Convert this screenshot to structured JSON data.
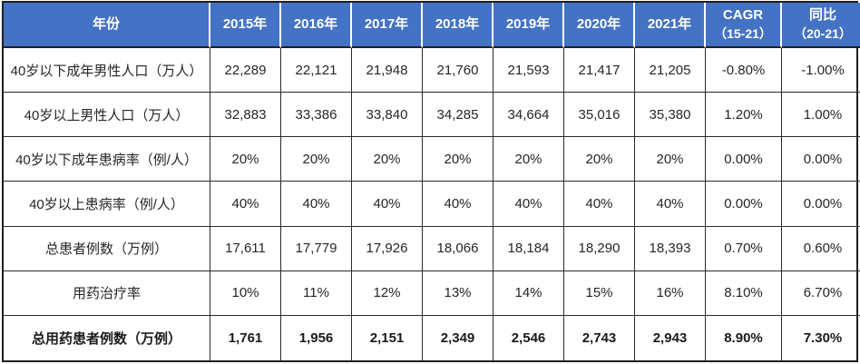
{
  "chart_data": {
    "type": "table",
    "title": "",
    "columns": [
      {
        "label": "年份",
        "sub": ""
      },
      {
        "label": "2015年",
        "sub": ""
      },
      {
        "label": "2016年",
        "sub": ""
      },
      {
        "label": "2017年",
        "sub": ""
      },
      {
        "label": "2018年",
        "sub": ""
      },
      {
        "label": "2019年",
        "sub": ""
      },
      {
        "label": "2020年",
        "sub": ""
      },
      {
        "label": "2021年",
        "sub": ""
      },
      {
        "label": "CAGR",
        "sub": "（15-21）"
      },
      {
        "label": "同比",
        "sub": "（20-21）"
      }
    ],
    "rows": [
      {
        "label": "40岁以下成年男性人口（万人）",
        "bold": false,
        "values": [
          "22,289",
          "22,121",
          "21,948",
          "21,760",
          "21,593",
          "21,417",
          "21,205",
          "-0.80%",
          "-1.00%"
        ]
      },
      {
        "label": "40岁以上男性人口（万人）",
        "bold": false,
        "values": [
          "32,883",
          "33,386",
          "33,840",
          "34,285",
          "34,664",
          "35,016",
          "35,380",
          "1.20%",
          "1.00%"
        ]
      },
      {
        "label": "40岁以下成年患病率（例/人）",
        "bold": false,
        "values": [
          "20%",
          "20%",
          "20%",
          "20%",
          "20%",
          "20%",
          "20%",
          "0.00%",
          "0.00%"
        ]
      },
      {
        "label": "40岁以上患病率（例/人）",
        "bold": false,
        "values": [
          "40%",
          "40%",
          "40%",
          "40%",
          "40%",
          "40%",
          "40%",
          "0.00%",
          "0.00%"
        ]
      },
      {
        "label": "总患者例数（万例）",
        "bold": false,
        "values": [
          "17,611",
          "17,779",
          "17,926",
          "18,066",
          "18,184",
          "18,290",
          "18,393",
          "0.70%",
          "0.60%"
        ]
      },
      {
        "label": "用药治疗率",
        "bold": false,
        "values": [
          "10%",
          "11%",
          "12%",
          "13%",
          "14%",
          "15%",
          "16%",
          "8.10%",
          "6.70%"
        ]
      },
      {
        "label": "总用药患者例数（万例）",
        "bold": true,
        "values": [
          "1,761",
          "1,956",
          "2,151",
          "2,349",
          "2,546",
          "2,743",
          "2,943",
          "8.90%",
          "7.30%"
        ]
      }
    ]
  },
  "colors": {
    "header_bg": "#4472C4",
    "header_text": "#FFFFFF",
    "body_text": "#262626",
    "border": "#1F1F1F"
  }
}
